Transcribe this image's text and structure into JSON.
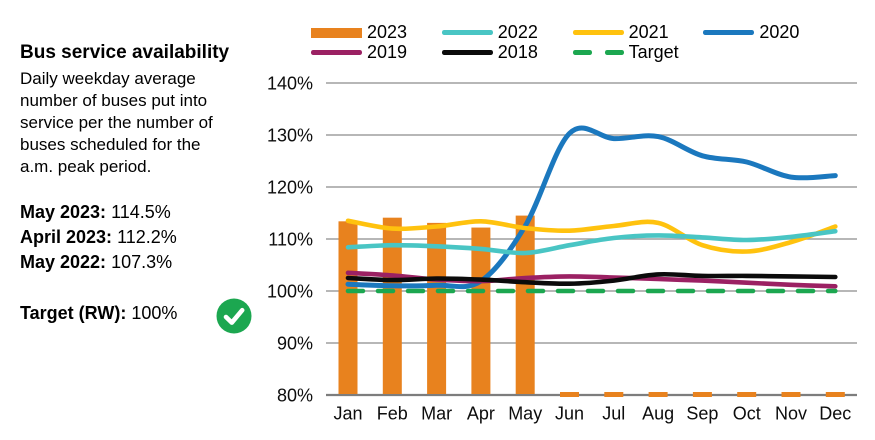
{
  "panel": {
    "title": "Bus service availability",
    "description": "Daily weekday average number of buses put into service per the number of buses scheduled for the a.m. peak period.",
    "stats": [
      {
        "label": "May 2023:",
        "value": "114.5%"
      },
      {
        "label": "April 2023:",
        "value": "112.2%"
      },
      {
        "label": "May 2022:",
        "value": "107.3%"
      }
    ],
    "target_label": "Target (RW):",
    "target_value": "100%",
    "status_icon": "check-circle-icon",
    "status_color": "#1CA750"
  },
  "chart_data": {
    "type": "bar+line",
    "title": "Bus service availability",
    "categories": [
      "Jan",
      "Feb",
      "Mar",
      "Apr",
      "May",
      "Jun",
      "Jul",
      "Aug",
      "Sep",
      "Oct",
      "Nov",
      "Dec"
    ],
    "ylim": [
      80,
      140
    ],
    "ytick_step": 10,
    "ytick_suffix": "%",
    "grid": true,
    "grid_color": "#9f9f9f",
    "axis_color": "#7d7d7d",
    "legend_position": "top",
    "legend_rows": [
      [
        "2023",
        "2022",
        "2021",
        "2020"
      ],
      [
        "2019",
        "2018",
        "Target"
      ]
    ],
    "series": [
      {
        "name": "2023",
        "type": "bar",
        "color": "#E8821E",
        "values": [
          113.4,
          114.1,
          113.1,
          112.2,
          114.5,
          null,
          null,
          null,
          null,
          null,
          null,
          null
        ]
      },
      {
        "name": "2022",
        "type": "line",
        "color": "#49C5C4",
        "values": [
          108.4,
          108.8,
          108.6,
          108.1,
          107.3,
          108.8,
          110.2,
          110.7,
          110.3,
          109.8,
          110.4,
          111.5
        ]
      },
      {
        "name": "2021",
        "type": "line",
        "color": "#FFC20E",
        "values": [
          113.5,
          112.0,
          112.4,
          113.4,
          112.1,
          111.6,
          112.5,
          113.1,
          108.8,
          107.6,
          109.4,
          112.4
        ]
      },
      {
        "name": "2020",
        "type": "line",
        "color": "#1B78BE",
        "values": [
          101.3,
          101.0,
          101.1,
          101.9,
          112.5,
          130.3,
          129.3,
          129.7,
          126.0,
          124.8,
          121.9,
          122.2
        ]
      },
      {
        "name": "2019",
        "type": "line",
        "color": "#9B2163",
        "values": [
          103.5,
          103.0,
          102.2,
          101.9,
          102.5,
          102.8,
          102.6,
          102.3,
          102.0,
          101.6,
          101.2,
          100.9
        ]
      },
      {
        "name": "2018",
        "type": "line",
        "color": "#0b0b0b",
        "values": [
          102.5,
          102.1,
          102.4,
          102.2,
          101.7,
          101.4,
          102.0,
          103.2,
          102.9,
          102.9,
          102.8,
          102.7
        ]
      },
      {
        "name": "Target",
        "type": "dashed-line",
        "color": "#1CA750",
        "values": [
          100,
          100,
          100,
          100,
          100,
          100,
          100,
          100,
          100,
          100,
          100,
          100
        ]
      }
    ]
  }
}
